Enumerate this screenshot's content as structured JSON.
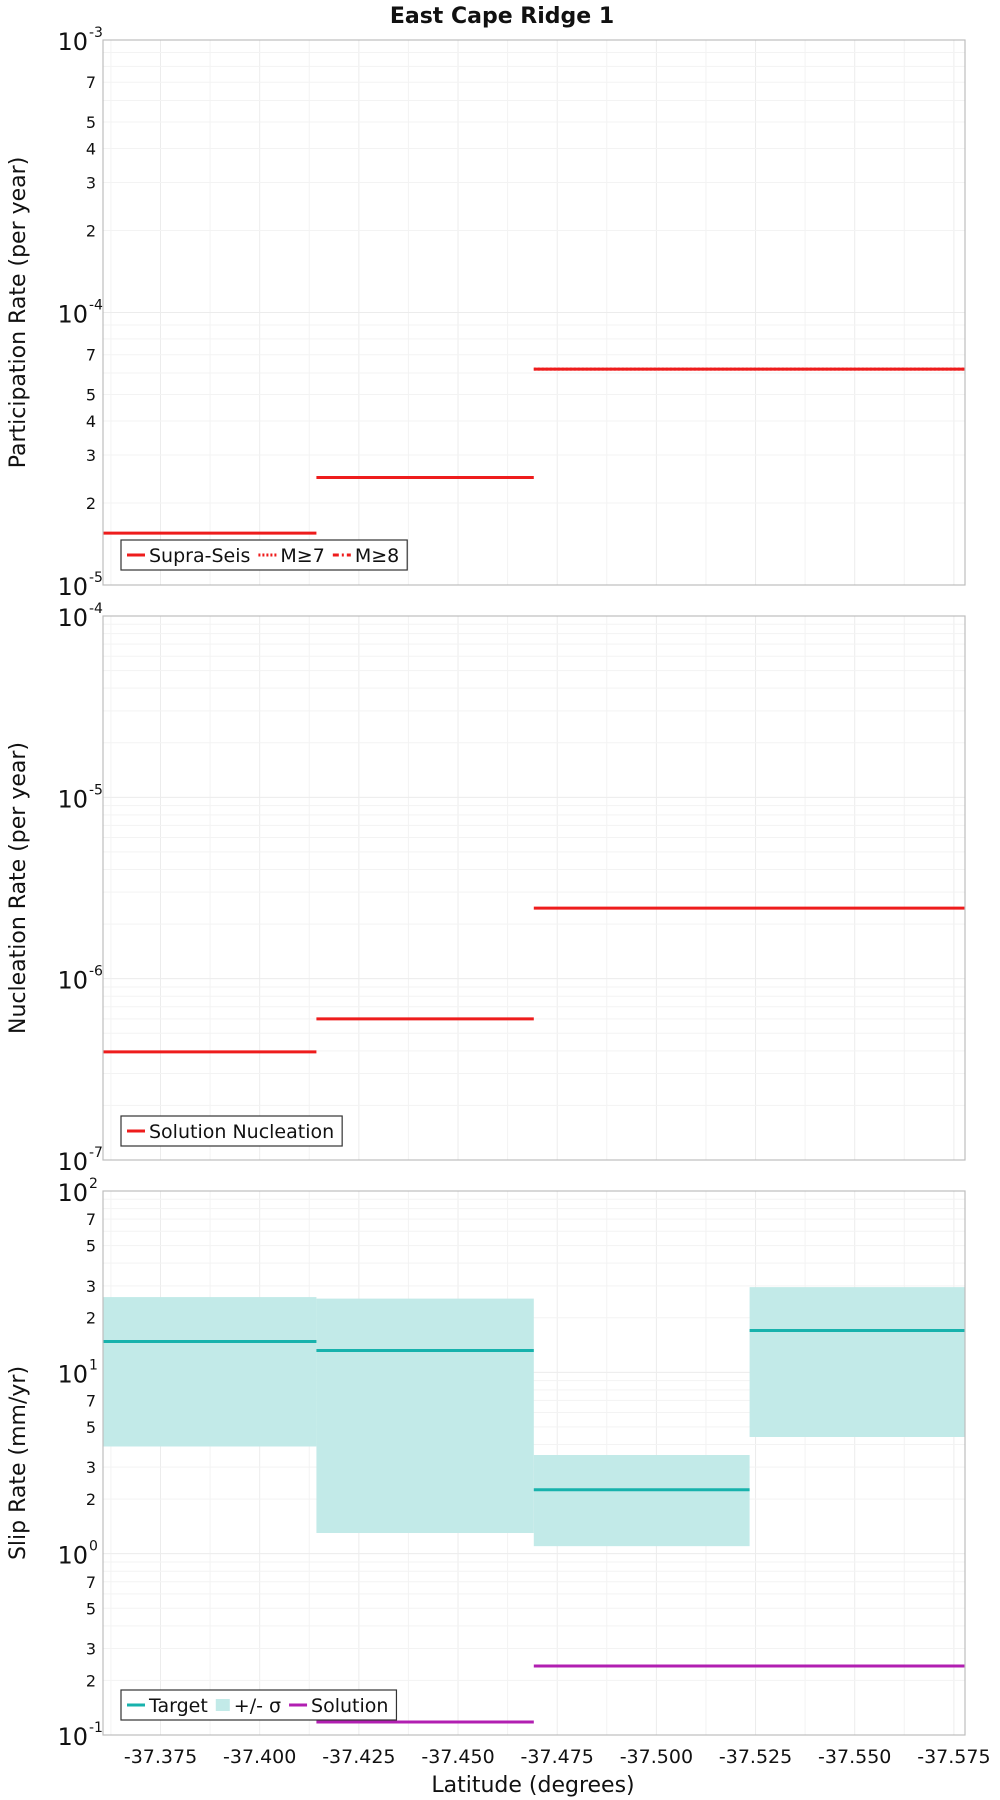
{
  "chart_data": {
    "title": "East Cape Ridge 1",
    "type": "line",
    "xlabel": "Latitude (degrees)",
    "xlim": [
      -37.3605,
      -37.5778
    ],
    "xticks": [
      "-37.375",
      "-37.400",
      "-37.425",
      "-37.450",
      "-37.475",
      "-37.500",
      "-37.525",
      "-37.550",
      "-37.575"
    ],
    "panels": [
      {
        "id": "participation",
        "ylabel": "Participation Rate (per year)",
        "yscale": "log",
        "ylim": [
          1e-05,
          0.001
        ],
        "decades": [
          {
            "base": "10",
            "exp": "-5"
          },
          {
            "base": "10",
            "exp": "-4"
          },
          {
            "base": "10",
            "exp": "-3"
          }
        ],
        "minor_labels": [
          "2",
          "3",
          "4",
          "5",
          "7"
        ],
        "series": [
          {
            "name": "Supra-Seis",
            "style": "solid",
            "color": "#ee1c1c",
            "segments": [
              {
                "x0": -37.3605,
                "x1": -37.4143,
                "y": 1.55e-05
              },
              {
                "x0": -37.4143,
                "x1": -37.4691,
                "y": 2.48e-05
              },
              {
                "x0": -37.4691,
                "x1": -37.5778,
                "y": 6.2e-05
              }
            ]
          },
          {
            "name": "M≥7",
            "style": "dotted",
            "color": "#ee1c1c",
            "segments": [
              {
                "x0": -37.4691,
                "x1": -37.5778,
                "y": 6.2e-05
              }
            ]
          },
          {
            "name": "M≥8",
            "style": "dashdot",
            "color": "#ee1c1c",
            "segments": []
          }
        ],
        "legend": [
          {
            "label": "Supra-Seis",
            "style": "solid",
            "color": "#ee1c1c"
          },
          {
            "label": "M≥7",
            "style": "dotted",
            "color": "#ee1c1c"
          },
          {
            "label": "M≥8",
            "style": "dashdot",
            "color": "#ee1c1c"
          }
        ],
        "legend_position": "bottom-left"
      },
      {
        "id": "nucleation",
        "ylabel": "Nucleation Rate (per year)",
        "yscale": "log",
        "ylim": [
          1e-07,
          0.0001
        ],
        "decades": [
          {
            "base": "10",
            "exp": "-7"
          },
          {
            "base": "10",
            "exp": "-6"
          },
          {
            "base": "10",
            "exp": "-5"
          },
          {
            "base": "10",
            "exp": "-4"
          }
        ],
        "minor_labels": [],
        "series": [
          {
            "name": "Solution Nucleation",
            "style": "solid",
            "color": "#ee1c1c",
            "segments": [
              {
                "x0": -37.3605,
                "x1": -37.4143,
                "y": 3.95e-07
              },
              {
                "x0": -37.4143,
                "x1": -37.4691,
                "y": 6e-07
              },
              {
                "x0": -37.4691,
                "x1": -37.5778,
                "y": 2.45e-06
              }
            ]
          }
        ],
        "legend": [
          {
            "label": "Solution Nucleation",
            "style": "solid",
            "color": "#ee1c1c"
          }
        ],
        "legend_position": "bottom-left"
      },
      {
        "id": "slip",
        "ylabel": "Slip Rate (mm/yr)",
        "yscale": "log",
        "ylim": [
          0.1,
          100
        ],
        "decades": [
          {
            "base": "10",
            "exp": "-1"
          },
          {
            "base": "10",
            "exp": "0"
          },
          {
            "base": "10",
            "exp": "1"
          },
          {
            "base": "10",
            "exp": "2"
          }
        ],
        "minor_labels": [
          "2",
          "3",
          "5",
          "7"
        ],
        "bands": [
          {
            "name": "+/- σ",
            "color": "#c2eae8",
            "segments": [
              {
                "x0": -37.3605,
                "x1": -37.4143,
                "lo": 3.9,
                "hi": 26.0
              },
              {
                "x0": -37.4143,
                "x1": -37.4691,
                "lo": 1.3,
                "hi": 25.5
              },
              {
                "x0": -37.4691,
                "x1": -37.5235,
                "lo": 1.1,
                "hi": 3.5
              },
              {
                "x0": -37.5235,
                "x1": -37.5778,
                "lo": 4.4,
                "hi": 29.5
              }
            ]
          }
        ],
        "series": [
          {
            "name": "Target",
            "style": "solid",
            "color": "#17b2ac",
            "segments": [
              {
                "x0": -37.3605,
                "x1": -37.4143,
                "y": 14.8
              },
              {
                "x0": -37.4143,
                "x1": -37.4691,
                "y": 13.2
              },
              {
                "x0": -37.4691,
                "x1": -37.5235,
                "y": 2.25
              },
              {
                "x0": -37.5235,
                "x1": -37.5778,
                "y": 17.0
              }
            ]
          },
          {
            "name": "Solution",
            "style": "solid",
            "color": "#b11fb1",
            "segments": [
              {
                "x0": -37.4143,
                "x1": -37.4691,
                "y": 0.118
              },
              {
                "x0": -37.4691,
                "x1": -37.5778,
                "y": 0.24
              }
            ]
          }
        ],
        "legend": [
          {
            "label": "Target",
            "style": "solid",
            "color": "#17b2ac"
          },
          {
            "label": "+/- σ",
            "style": "band",
            "color": "#c2eae8"
          },
          {
            "label": "Solution",
            "style": "solid",
            "color": "#b11fb1"
          }
        ],
        "legend_position": "bottom-left"
      }
    ]
  }
}
